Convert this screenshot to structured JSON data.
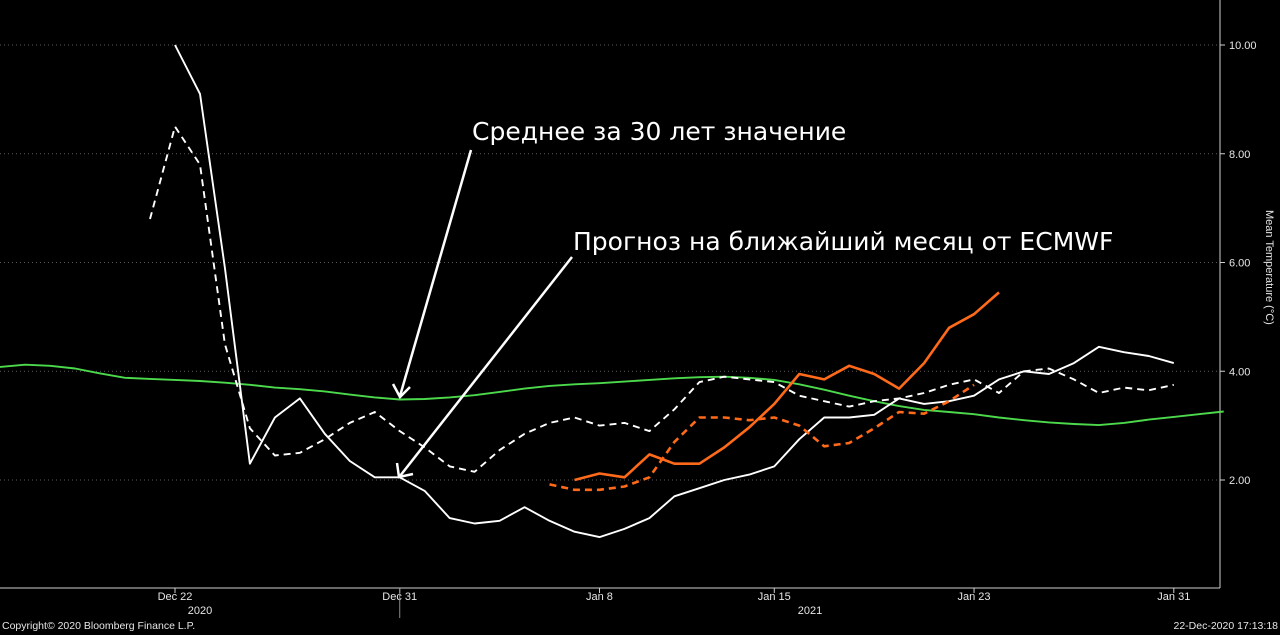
{
  "chart_data": {
    "type": "line",
    "ylabel": "Mean Temperature (°C)",
    "ylim": [
      0,
      10.8
    ],
    "y_ticks": [
      "10.00",
      "8.00",
      "6.00",
      "4.00",
      "2.00"
    ],
    "x_ticks": [
      "Dec 22",
      "Dec 31",
      "Jan 8",
      "Jan 15",
      "Jan 23",
      "Jan 31"
    ],
    "year_labels": [
      "2020",
      "2021"
    ],
    "annotations": [
      "Среднее за 30 лет значение",
      "Прогноз на ближайший месяц от ECMWF"
    ],
    "grid": "horizontal dotted",
    "series": [
      {
        "color": "#4cd94c",
        "style": "solid",
        "x": [
          "2020-12-13",
          "2020-12-14",
          "2020-12-15",
          "2020-12-16",
          "2020-12-17",
          "2020-12-18",
          "2020-12-19",
          "2020-12-20",
          "2020-12-21",
          "2020-12-22",
          "2020-12-23",
          "2020-12-24",
          "2020-12-25",
          "2020-12-26",
          "2020-12-27",
          "2020-12-28",
          "2020-12-29",
          "2020-12-30",
          "2020-12-31",
          "2021-01-01",
          "2021-01-02",
          "2021-01-03",
          "2021-01-04",
          "2021-01-05",
          "2021-01-06",
          "2021-01-07",
          "2021-01-08",
          "2021-01-09",
          "2021-01-10",
          "2021-01-11",
          "2021-01-12",
          "2021-01-13",
          "2021-01-14",
          "2021-01-15",
          "2021-01-16",
          "2021-01-17",
          "2021-01-18",
          "2021-01-19",
          "2021-01-20",
          "2021-01-21",
          "2021-01-22",
          "2021-01-23",
          "2021-01-24",
          "2021-01-25",
          "2021-01-26",
          "2021-01-27",
          "2021-01-28",
          "2021-01-29",
          "2021-01-30",
          "2021-01-31",
          "2021-02-01",
          "2021-02-02"
        ],
        "y": [
          4.0,
          4.02,
          4.08,
          4.12,
          4.1,
          4.05,
          3.96,
          3.88,
          3.86,
          3.84,
          3.82,
          3.79,
          3.75,
          3.7,
          3.67,
          3.63,
          3.57,
          3.52,
          3.48,
          3.49,
          3.52,
          3.56,
          3.62,
          3.68,
          3.73,
          3.76,
          3.78,
          3.81,
          3.84,
          3.87,
          3.89,
          3.9,
          3.88,
          3.84,
          3.76,
          3.66,
          3.55,
          3.45,
          3.36,
          3.29,
          3.25,
          3.21,
          3.15,
          3.1,
          3.06,
          3.03,
          3.01,
          3.05,
          3.11,
          3.16,
          3.21,
          3.26
        ]
      },
      {
        "color": "#ffffff",
        "style": "solid",
        "x": [
          "2020-12-22",
          "2020-12-23",
          "2020-12-24",
          "2020-12-25",
          "2020-12-26",
          "2020-12-27",
          "2020-12-28",
          "2020-12-29",
          "2020-12-30",
          "2020-12-31",
          "2021-01-01",
          "2021-01-02",
          "2021-01-03",
          "2021-01-04",
          "2021-01-05",
          "2021-01-06",
          "2021-01-07",
          "2021-01-08",
          "2021-01-09",
          "2021-01-10",
          "2021-01-11",
          "2021-01-12",
          "2021-01-13",
          "2021-01-14",
          "2021-01-15",
          "2021-01-16",
          "2021-01-17",
          "2021-01-18",
          "2021-01-19",
          "2021-01-20",
          "2021-01-21",
          "2021-01-22",
          "2021-01-23",
          "2021-01-24",
          "2021-01-25",
          "2021-01-26",
          "2021-01-27",
          "2021-01-28",
          "2021-01-29",
          "2021-01-30",
          "2021-01-31"
        ],
        "y": [
          10.0,
          9.1,
          5.9,
          2.3,
          3.15,
          3.5,
          2.85,
          2.35,
          2.05,
          2.05,
          1.8,
          1.3,
          1.2,
          1.25,
          1.5,
          1.25,
          1.05,
          0.95,
          1.1,
          1.3,
          1.7,
          1.85,
          2.0,
          2.1,
          2.25,
          2.75,
          3.15,
          3.15,
          3.2,
          3.5,
          3.4,
          3.45,
          3.55,
          3.85,
          4.0,
          3.95,
          4.15,
          4.45,
          4.35,
          4.28,
          4.15
        ]
      },
      {
        "color": "#ffffff",
        "style": "dashed",
        "x": [
          "2020-12-21",
          "2020-12-22",
          "2020-12-23",
          "2020-12-24",
          "2020-12-25",
          "2020-12-26",
          "2020-12-27",
          "2020-12-28",
          "2020-12-29",
          "2020-12-30",
          "2020-12-31",
          "2021-01-01",
          "2021-01-02",
          "2021-01-03",
          "2021-01-04",
          "2021-01-05",
          "2021-01-06",
          "2021-01-07",
          "2021-01-08",
          "2021-01-09",
          "2021-01-10",
          "2021-01-11",
          "2021-01-12",
          "2021-01-13",
          "2021-01-14",
          "2021-01-15",
          "2021-01-16",
          "2021-01-17",
          "2021-01-18",
          "2021-01-19",
          "2021-01-20",
          "2021-01-21",
          "2021-01-22",
          "2021-01-23",
          "2021-01-24",
          "2021-01-25",
          "2021-01-26",
          "2021-01-27",
          "2021-01-28",
          "2021-01-29",
          "2021-01-30",
          "2021-01-31"
        ],
        "y": [
          6.8,
          8.5,
          7.8,
          4.5,
          2.95,
          2.45,
          2.5,
          2.75,
          3.05,
          3.25,
          2.9,
          2.6,
          2.25,
          2.15,
          2.55,
          2.85,
          3.05,
          3.15,
          3.0,
          3.05,
          2.9,
          3.3,
          3.8,
          3.9,
          3.85,
          3.8,
          3.55,
          3.45,
          3.35,
          3.45,
          3.5,
          3.6,
          3.75,
          3.85,
          3.6,
          4.0,
          4.05,
          3.85,
          3.6,
          3.7,
          3.65,
          3.75
        ]
      },
      {
        "color": "#ff6a1a",
        "style": "solid",
        "x": [
          "2021-01-07",
          "2021-01-08",
          "2021-01-09",
          "2021-01-10",
          "2021-01-11",
          "2021-01-12",
          "2021-01-13",
          "2021-01-14",
          "2021-01-15",
          "2021-01-16",
          "2021-01-17",
          "2021-01-18",
          "2021-01-19",
          "2021-01-20",
          "2021-01-21",
          "2021-01-22",
          "2021-01-23",
          "2021-01-24"
        ],
        "y": [
          2.0,
          2.12,
          2.05,
          2.47,
          2.3,
          2.3,
          2.6,
          2.97,
          3.4,
          3.95,
          3.85,
          4.1,
          3.95,
          3.68,
          4.15,
          4.8,
          5.05,
          5.45
        ]
      },
      {
        "color": "#ff6a1a",
        "style": "dashed",
        "x": [
          "2021-01-06",
          "2021-01-07",
          "2021-01-08",
          "2021-01-09",
          "2021-01-10",
          "2021-01-11",
          "2021-01-12",
          "2021-01-13",
          "2021-01-14",
          "2021-01-15",
          "2021-01-16",
          "2021-01-17",
          "2021-01-18",
          "2021-01-19",
          "2021-01-20",
          "2021-01-21",
          "2021-01-22",
          "2021-01-23"
        ],
        "y": [
          1.92,
          1.82,
          1.82,
          1.88,
          2.05,
          2.7,
          3.15,
          3.15,
          3.1,
          3.15,
          3.0,
          2.62,
          2.68,
          2.95,
          3.25,
          3.22,
          3.45,
          3.75
        ]
      }
    ]
  },
  "footer": {
    "copyright": "Copyright© 2020 Bloomberg Finance L.P.",
    "timestamp": "22-Dec-2020 17:13:18"
  }
}
